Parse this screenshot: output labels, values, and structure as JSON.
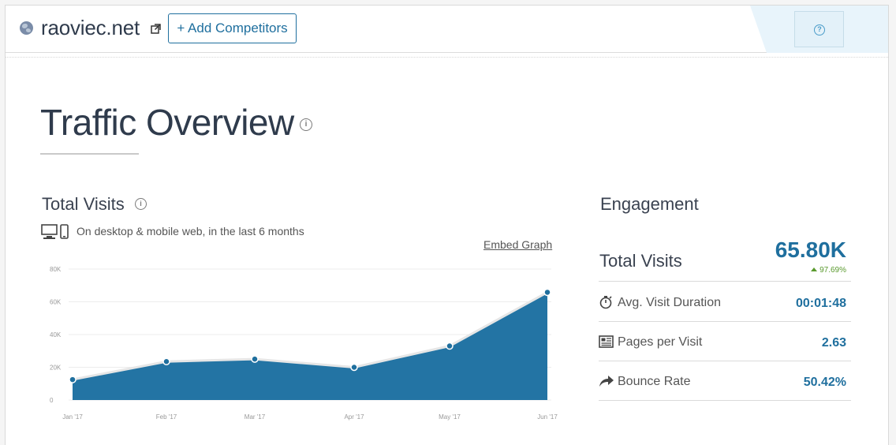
{
  "header": {
    "domain": "raoviec.net",
    "add_competitors_label": "+ Add Competitors"
  },
  "page_title": "Traffic Overview",
  "total_visits_section": {
    "title": "Total Visits",
    "subtitle": "On desktop & mobile web, in the last 6 months",
    "embed_label": "Embed Graph"
  },
  "chart_data": {
    "type": "area",
    "categories": [
      "Jan '17",
      "Feb '17",
      "Mar '17",
      "Apr '17",
      "May '17",
      "Jun '17"
    ],
    "values": [
      12500,
      23500,
      25000,
      20000,
      33000,
      65800
    ],
    "ylim": [
      0,
      80000
    ],
    "yticks": [
      "0",
      "20K",
      "40K",
      "60K",
      "80K"
    ],
    "grid": true,
    "fill_color": "#2374a4",
    "line_color": "#e6e6e6"
  },
  "engagement": {
    "title": "Engagement",
    "total_visits_label": "Total Visits",
    "total_visits_value": "65.80K",
    "total_visits_change": "97.69%",
    "rows": [
      {
        "icon": "stopwatch-icon",
        "label": "Avg. Visit Duration",
        "value": "00:01:48"
      },
      {
        "icon": "pages-icon",
        "label": "Pages per Visit",
        "value": "2.63"
      },
      {
        "icon": "bounce-arrow-icon",
        "label": "Bounce Rate",
        "value": "50.42%"
      }
    ]
  },
  "colors": {
    "accent": "#1f6f9e",
    "positive": "#5a9a2e"
  }
}
